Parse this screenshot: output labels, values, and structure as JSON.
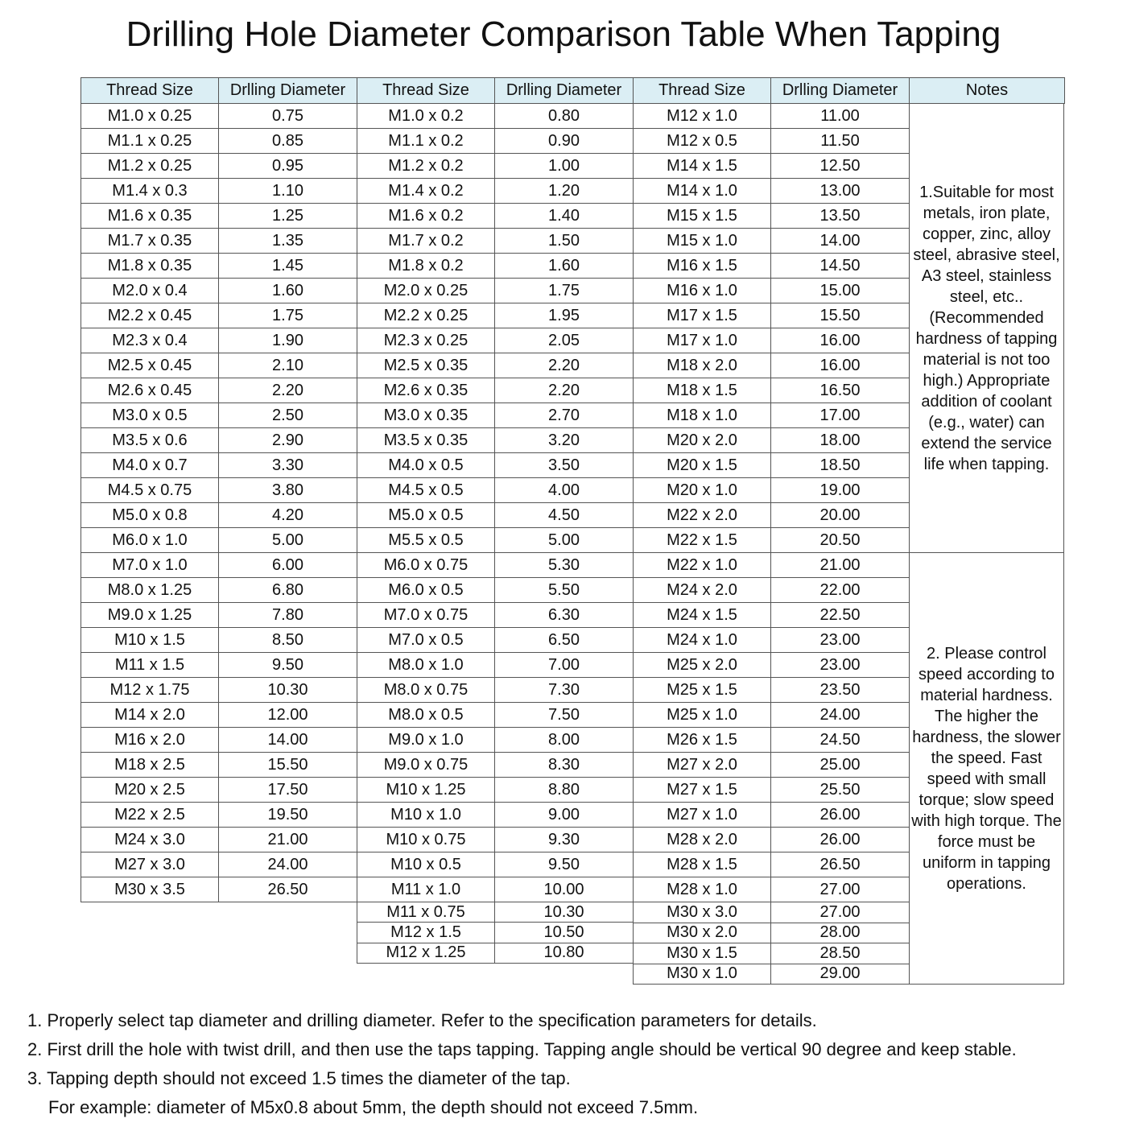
{
  "title": "Drilling Hole Diameter Comparison Table When Tapping",
  "headers": [
    "Thread Size",
    "Drlling Diameter",
    "Thread Size",
    "Drlling Diameter",
    "Thread Size",
    "Drlling Diameter",
    "Notes"
  ],
  "groups": [
    {
      "rows": [
        [
          "M1.0 x 0.25",
          "0.75"
        ],
        [
          "M1.1 x 0.25",
          "0.85"
        ],
        [
          "M1.2 x 0.25",
          "0.95"
        ],
        [
          "M1.4 x 0.3",
          "1.10"
        ],
        [
          "M1.6 x 0.35",
          "1.25"
        ],
        [
          "M1.7 x 0.35",
          "1.35"
        ],
        [
          "M1.8 x 0.35",
          "1.45"
        ],
        [
          "M2.0 x 0.4",
          "1.60"
        ],
        [
          "M2.2 x 0.45",
          "1.75"
        ],
        [
          "M2.3 x 0.4",
          "1.90"
        ],
        [
          "M2.5 x 0.45",
          "2.10"
        ],
        [
          "M2.6 x 0.45",
          "2.20"
        ],
        [
          "M3.0 x 0.5",
          "2.50"
        ],
        [
          "M3.5 x 0.6",
          "2.90"
        ],
        [
          "M4.0 x 0.7",
          "3.30"
        ],
        [
          "M4.5 x 0.75",
          "3.80"
        ],
        [
          "M5.0 x 0.8",
          "4.20"
        ],
        [
          "M6.0 x 1.0",
          "5.00"
        ],
        [
          "M7.0 x 1.0",
          "6.00"
        ],
        [
          "M8.0 x 1.25",
          "6.80"
        ],
        [
          "M9.0 x 1.25",
          "7.80"
        ],
        [
          "M10 x 1.5",
          "8.50"
        ],
        [
          "M11 x 1.5",
          "9.50"
        ],
        [
          "M12 x 1.75",
          "10.30"
        ],
        [
          "M14 x 2.0",
          "12.00"
        ],
        [
          "M16 x 2.0",
          "14.00"
        ],
        [
          "M18 x 2.5",
          "15.50"
        ],
        [
          "M20 x 2.5",
          "17.50"
        ],
        [
          "M22 x 2.5",
          "19.50"
        ],
        [
          "M24 x 3.0",
          "21.00"
        ],
        [
          "M27 x 3.0",
          "24.00"
        ],
        [
          "M30 x 3.5",
          "26.50"
        ]
      ]
    },
    {
      "rows": [
        [
          "M1.0 x 0.2",
          "0.80"
        ],
        [
          "M1.1 x 0.2",
          "0.90"
        ],
        [
          "M1.2 x 0.2",
          "1.00"
        ],
        [
          "M1.4 x 0.2",
          "1.20"
        ],
        [
          "M1.6 x 0.2",
          "1.40"
        ],
        [
          "M1.7 x 0.2",
          "1.50"
        ],
        [
          "M1.8 x 0.2",
          "1.60"
        ],
        [
          "M2.0 x 0.25",
          "1.75"
        ],
        [
          "M2.2 x 0.25",
          "1.95"
        ],
        [
          "M2.3 x 0.25",
          "2.05"
        ],
        [
          "M2.5 x 0.35",
          "2.20"
        ],
        [
          "M2.6 x 0.35",
          "2.20"
        ],
        [
          "M3.0 x 0.35",
          "2.70"
        ],
        [
          "M3.5 x 0.35",
          "3.20"
        ],
        [
          "M4.0 x 0.5",
          "3.50"
        ],
        [
          "M4.5 x 0.5",
          "4.00"
        ],
        [
          "M5.0 x 0.5",
          "4.50"
        ],
        [
          "M5.5 x 0.5",
          "5.00"
        ],
        [
          "M6.0 x 0.75",
          "5.30"
        ],
        [
          "M6.0 x 0.5",
          "5.50"
        ],
        [
          "M7.0 x 0.75",
          "6.30"
        ],
        [
          "M7.0 x 0.5",
          "6.50"
        ],
        [
          "M8.0 x 1.0",
          "7.00"
        ],
        [
          "M8.0 x 0.75",
          "7.30"
        ],
        [
          "M8.0 x 0.5",
          "7.50"
        ],
        [
          "M9.0 x 1.0",
          "8.00"
        ],
        [
          "M9.0 x 0.75",
          "8.30"
        ],
        [
          "M10 x 1.25",
          "8.80"
        ],
        [
          "M10 x 1.0",
          "9.00"
        ],
        [
          "M10 x 0.75",
          "9.30"
        ],
        [
          "M10 x 0.5",
          "9.50"
        ],
        [
          "M11 x 1.0",
          "10.00"
        ],
        [
          "M11 x 0.75",
          "10.30"
        ],
        [
          "M12 x 1.5",
          "10.50"
        ],
        [
          "M12 x 1.25",
          "10.80"
        ]
      ]
    },
    {
      "rows": [
        [
          "M12 x 1.0",
          "11.00"
        ],
        [
          "M12 x 0.5",
          "11.50"
        ],
        [
          "M14 x 1.5",
          "12.50"
        ],
        [
          "M14 x 1.0",
          "13.00"
        ],
        [
          "M15 x 1.5",
          "13.50"
        ],
        [
          "M15 x 1.0",
          "14.00"
        ],
        [
          "M16 x 1.5",
          "14.50"
        ],
        [
          "M16 x 1.0",
          "15.00"
        ],
        [
          "M17 x 1.5",
          "15.50"
        ],
        [
          "M17 x 1.0",
          "16.00"
        ],
        [
          "M18 x 2.0",
          "16.00"
        ],
        [
          "M18 x 1.5",
          "16.50"
        ],
        [
          "M18 x 1.0",
          "17.00"
        ],
        [
          "M20 x 2.0",
          "18.00"
        ],
        [
          "M20 x 1.5",
          "18.50"
        ],
        [
          "M20 x 1.0",
          "19.00"
        ],
        [
          "M22 x 2.0",
          "20.00"
        ],
        [
          "M22 x 1.5",
          "20.50"
        ],
        [
          "M22 x 1.0",
          "21.00"
        ],
        [
          "M24 x 2.0",
          "22.00"
        ],
        [
          "M24 x 1.5",
          "22.50"
        ],
        [
          "M24 x 1.0",
          "23.00"
        ],
        [
          "M25 x 2.0",
          "23.00"
        ],
        [
          "M25 x 1.5",
          "23.50"
        ],
        [
          "M25 x 1.0",
          "24.00"
        ],
        [
          "M26 x 1.5",
          "24.50"
        ],
        [
          "M27 x 2.0",
          "25.00"
        ],
        [
          "M27 x 1.5",
          "25.50"
        ],
        [
          "M27 x 1.0",
          "26.00"
        ],
        [
          "M28 x 2.0",
          "26.00"
        ],
        [
          "M28 x 1.5",
          "26.50"
        ],
        [
          "M28 x 1.0",
          "27.00"
        ],
        [
          "M30 x 3.0",
          "27.00"
        ],
        [
          "M30 x 2.0",
          "28.00"
        ],
        [
          "M30 x 1.5",
          "28.50"
        ],
        [
          "M30 x 1.0",
          "29.00"
        ]
      ]
    }
  ],
  "notes": [
    "1.Suitable for most metals, iron plate, copper, zinc, alloy steel, abrasive steel, A3 steel, stainless steel, etc..(Recommended hardness of tapping material is not too high.) Appropriate addition of coolant (e.g., water) can extend the service life when tapping.",
    "2. Please control speed according to material hardness. The higher the hardness, the slower the speed. Fast speed with small torque; slow speed with high torque. The force must be uniform in tapping operations."
  ],
  "footer": [
    "1. Properly select tap diameter and drilling diameter. Refer to the specification parameters for details.",
    "2. First drill the hole with twist drill, and then use the taps tapping. Tapping angle should be vertical 90 degree and keep stable.",
    "3. Tapping depth should not exceed 1.5 times the diameter of the tap.",
    "For example: diameter of M5x0.8 about 5mm, the depth should not exceed 7.5mm."
  ],
  "colors": {
    "header_bg": "#dbeef4",
    "border": "#555555"
  }
}
